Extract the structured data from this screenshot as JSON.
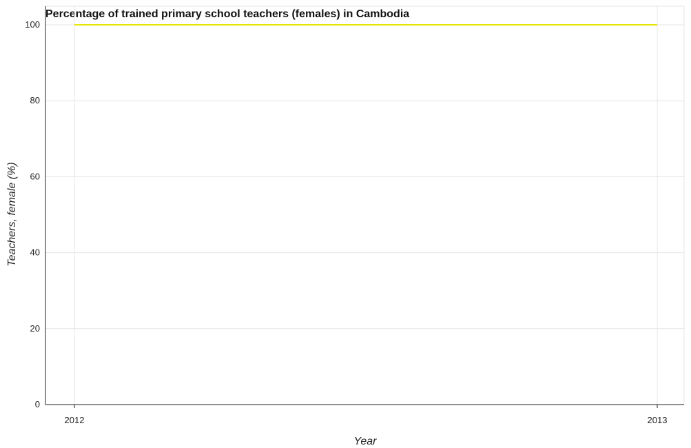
{
  "chart_data": {
    "type": "line",
    "title": "Percentage of trained primary school teachers (females) in Cambodia",
    "xlabel": "Year",
    "ylabel": "Teachers, female (%)",
    "categories": [
      "2012",
      "2013"
    ],
    "series": [
      {
        "values": [
          100,
          100
        ],
        "color": "#e5e600"
      }
    ],
    "ylim": [
      0,
      100
    ],
    "yticks": [
      0,
      20,
      40,
      60,
      80,
      100
    ],
    "grid": true,
    "legend": "none"
  }
}
